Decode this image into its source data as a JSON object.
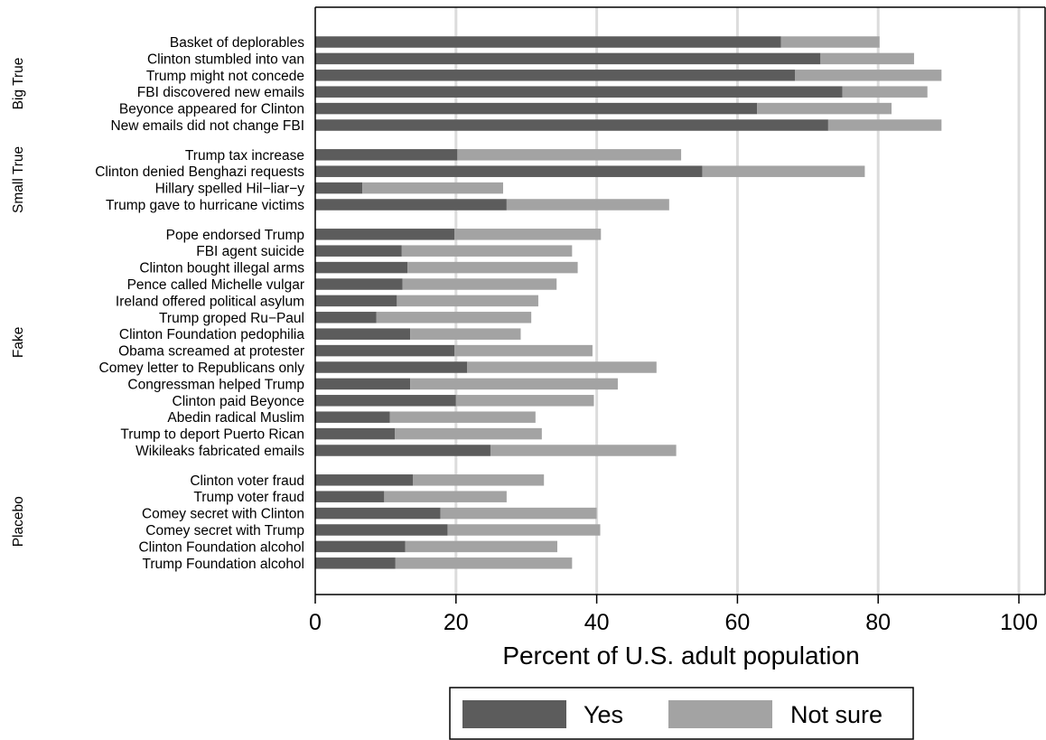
{
  "chart_data": {
    "type": "bar",
    "orientation": "horizontal",
    "stacked": true,
    "xlabel": "Percent of U.S. adult population",
    "xlim": [
      0,
      100
    ],
    "xticks": [
      0,
      20,
      40,
      60,
      80,
      100
    ],
    "grid": true,
    "legend_position": "bottom",
    "series": [
      {
        "name": "Yes",
        "color": "#5c5c5c"
      },
      {
        "name": "Not sure",
        "color": "#a3a3a3"
      }
    ],
    "groups": [
      {
        "name": "Big True",
        "items": [
          {
            "label": "Basket of deplorables",
            "yes": 66.2,
            "not_sure": 14.0
          },
          {
            "label": "Clinton stumbled into van",
            "yes": 71.8,
            "not_sure": 13.3
          },
          {
            "label": "Trump might not concede",
            "yes": 68.2,
            "not_sure": 20.8
          },
          {
            "label": "FBI discovered new emails",
            "yes": 74.9,
            "not_sure": 12.1
          },
          {
            "label": "Beyonce appeared for Clinton",
            "yes": 62.8,
            "not_sure": 19.1
          },
          {
            "label": "New emails did not change FBI",
            "yes": 72.9,
            "not_sure": 16.1
          }
        ]
      },
      {
        "name": "Small True",
        "items": [
          {
            "label": "Trump tax increase",
            "yes": 20.2,
            "not_sure": 31.8
          },
          {
            "label": "Clinton denied Benghazi requests",
            "yes": 55.0,
            "not_sure": 23.1
          },
          {
            "label": "Hillary spelled Hil−liar−y",
            "yes": 6.7,
            "not_sure": 20.0
          },
          {
            "label": "Trump gave to hurricane victims",
            "yes": 27.2,
            "not_sure": 23.1
          }
        ]
      },
      {
        "name": "Fake",
        "items": [
          {
            "label": "Pope endorsed Trump",
            "yes": 19.8,
            "not_sure": 20.8
          },
          {
            "label": "FBI agent suicide",
            "yes": 12.3,
            "not_sure": 24.2
          },
          {
            "label": "Clinton bought illegal arms",
            "yes": 13.1,
            "not_sure": 24.2
          },
          {
            "label": "Pence called Michelle vulgar",
            "yes": 12.4,
            "not_sure": 21.9
          },
          {
            "label": "Ireland offered political asylum",
            "yes": 11.6,
            "not_sure": 20.1
          },
          {
            "label": "Trump groped Ru−Paul",
            "yes": 8.7,
            "not_sure": 22.0
          },
          {
            "label": "Clinton Foundation pedophilia",
            "yes": 13.5,
            "not_sure": 15.7
          },
          {
            "label": "Obama screamed at protester",
            "yes": 19.8,
            "not_sure": 19.6
          },
          {
            "label": "Comey letter to Republicans only",
            "yes": 21.6,
            "not_sure": 26.9
          },
          {
            "label": "Congressman helped Trump",
            "yes": 13.5,
            "not_sure": 29.5
          },
          {
            "label": "Clinton paid Beyonce",
            "yes": 20.0,
            "not_sure": 19.6
          },
          {
            "label": "Abedin radical Muslim",
            "yes": 10.6,
            "not_sure": 20.7
          },
          {
            "label": "Trump to deport Puerto Rican",
            "yes": 11.3,
            "not_sure": 20.9
          },
          {
            "label": "Wikileaks fabricated emails",
            "yes": 24.9,
            "not_sure": 26.4
          }
        ]
      },
      {
        "name": "Placebo",
        "items": [
          {
            "label": "Clinton voter fraud",
            "yes": 13.9,
            "not_sure": 18.6
          },
          {
            "label": "Trump voter fraud",
            "yes": 9.8,
            "not_sure": 17.4
          },
          {
            "label": "Comey secret with Clinton",
            "yes": 17.8,
            "not_sure": 22.2
          },
          {
            "label": "Comey secret with Trump",
            "yes": 18.8,
            "not_sure": 21.7
          },
          {
            "label": "Clinton Foundation alcohol",
            "yes": 12.8,
            "not_sure": 21.6
          },
          {
            "label": "Trump Foundation alcohol",
            "yes": 11.4,
            "not_sure": 25.1
          }
        ]
      }
    ]
  }
}
